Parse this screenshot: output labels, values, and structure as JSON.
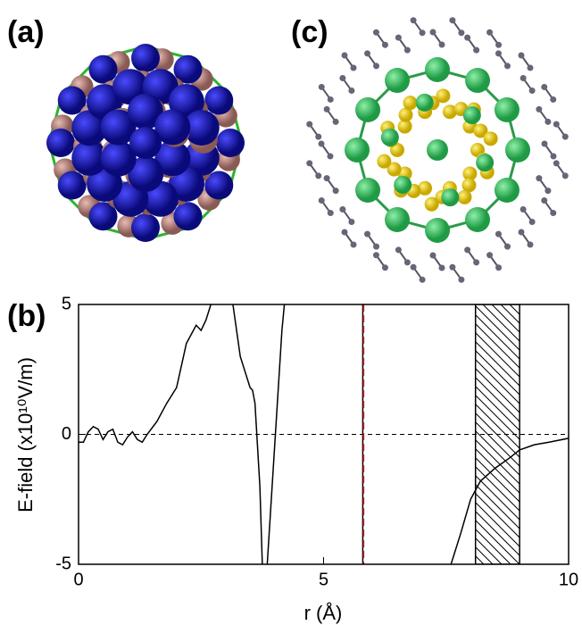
{
  "panel_labels": [
    "(a)",
    "(b)",
    "(c)"
  ],
  "chart_data": {
    "type": "line",
    "xlabel": "r (Å)",
    "ylabel": "E-field (x10¹⁰V/m)",
    "xlim": [
      0,
      10
    ],
    "ylim": [
      -5,
      5
    ],
    "xticks": [
      0,
      5,
      10
    ],
    "yticks": [
      -5,
      0,
      5
    ],
    "hline": 0,
    "vline": 5.8,
    "vline_color": "#d62728",
    "shaded_region": [
      8.1,
      9.0
    ],
    "series": [
      {
        "color": "#000000",
        "x": [
          0,
          0.1,
          0.2,
          0.3,
          0.4,
          0.5,
          0.6,
          0.7,
          0.8,
          0.9,
          1.0,
          1.1,
          1.2,
          1.3,
          1.4,
          1.6,
          1.8,
          2.0,
          2.2,
          2.4,
          2.5,
          2.6,
          2.7,
          null,
          3.15,
          3.3,
          3.5,
          3.55,
          3.6,
          3.7,
          3.75,
          null,
          3.85,
          3.95,
          4.05,
          4.15,
          4.2,
          null,
          7.6,
          7.8,
          8.0,
          8.2,
          8.5,
          8.8,
          9.0,
          9.3,
          9.6,
          10
        ],
        "values": [
          -0.3,
          -0.3,
          0.1,
          0.3,
          0.2,
          -0.2,
          0.1,
          0.2,
          -0.3,
          -0.4,
          -0.1,
          0.1,
          -0.2,
          -0.3,
          0,
          0.5,
          1.2,
          1.8,
          3.5,
          4.2,
          4.0,
          4.4,
          5,
          null,
          5,
          3,
          1.8,
          1.7,
          1.2,
          -2,
          -5,
          null,
          -5,
          -2,
          1,
          4,
          5,
          null,
          -5,
          -3.8,
          -2.5,
          -1.8,
          -1.3,
          -0.9,
          -0.6,
          -0.4,
          -0.3,
          -0.15
        ]
      }
    ]
  }
}
